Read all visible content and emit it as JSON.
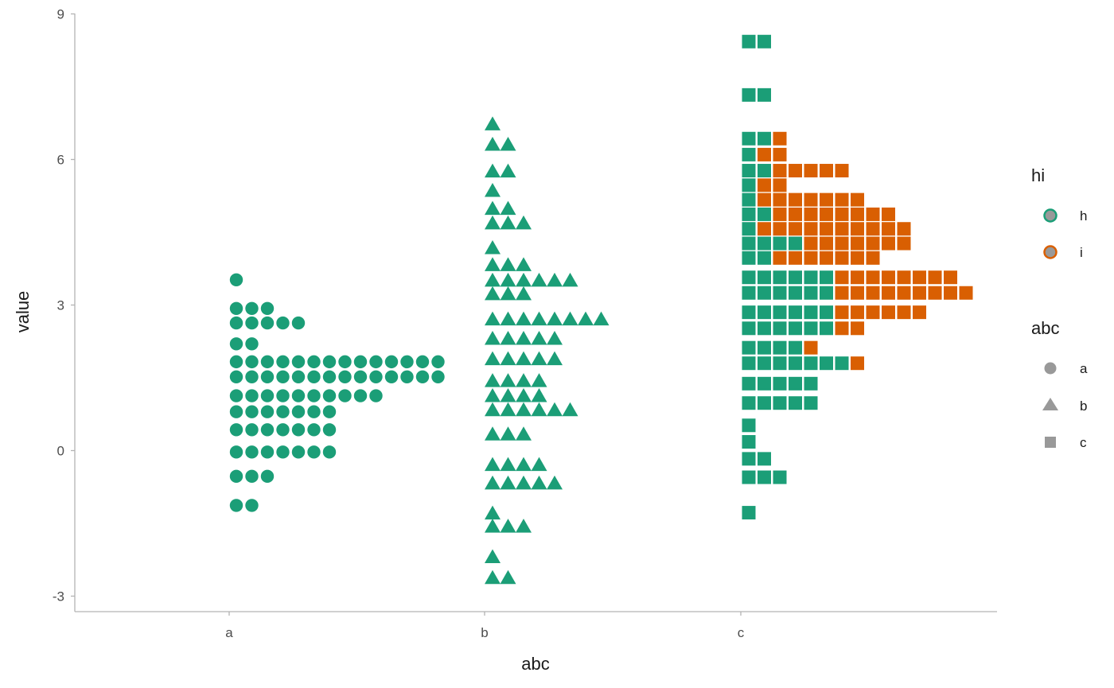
{
  "chart_data": {
    "type": "dotplot",
    "xlabel": "abc",
    "ylabel": "value",
    "categories": [
      "a",
      "b",
      "c"
    ],
    "y_ticks": [
      "-3",
      "0",
      "3",
      "6",
      "9"
    ],
    "ylim": [
      -3.3,
      9.05
    ],
    "binwidth": 0.33,
    "grid": false,
    "legend_position": "right",
    "colors": {
      "h": "#1B9E77",
      "i": "#D95F02",
      "legend_fill": "#999999"
    },
    "shapes": {
      "a": "circle",
      "b": "triangle",
      "c": "square"
    },
    "stacks": {
      "a": [
        {
          "y": 3.52,
          "counts": {
            "h": 1
          }
        },
        {
          "y": 2.93,
          "counts": {
            "h": 3
          }
        },
        {
          "y": 2.63,
          "counts": {
            "h": 5
          }
        },
        {
          "y": 2.2,
          "counts": {
            "h": 2
          }
        },
        {
          "y": 1.83,
          "counts": {
            "h": 14
          }
        },
        {
          "y": 1.52,
          "counts": {
            "h": 14
          }
        },
        {
          "y": 1.13,
          "counts": {
            "h": 10
          }
        },
        {
          "y": 0.8,
          "counts": {
            "h": 7
          }
        },
        {
          "y": 0.43,
          "counts": {
            "h": 7
          }
        },
        {
          "y": -0.03,
          "counts": {
            "h": 7
          }
        },
        {
          "y": -0.53,
          "counts": {
            "h": 3
          }
        },
        {
          "y": -1.13,
          "counts": {
            "h": 2
          }
        }
      ],
      "b": [
        {
          "y": 6.72,
          "counts": {
            "h": 1
          }
        },
        {
          "y": 6.3,
          "counts": {
            "h": 2
          }
        },
        {
          "y": 5.75,
          "counts": {
            "h": 2
          }
        },
        {
          "y": 5.35,
          "counts": {
            "h": 1
          }
        },
        {
          "y": 4.98,
          "counts": {
            "h": 2
          }
        },
        {
          "y": 4.68,
          "counts": {
            "h": 3
          }
        },
        {
          "y": 4.17,
          "counts": {
            "h": 1
          }
        },
        {
          "y": 3.82,
          "counts": {
            "h": 3
          }
        },
        {
          "y": 3.5,
          "counts": {
            "h": 6
          }
        },
        {
          "y": 3.22,
          "counts": {
            "h": 3
          }
        },
        {
          "y": 2.7,
          "counts": {
            "h": 8
          }
        },
        {
          "y": 2.3,
          "counts": {
            "h": 5
          }
        },
        {
          "y": 1.88,
          "counts": {
            "h": 5
          }
        },
        {
          "y": 1.43,
          "counts": {
            "h": 4
          }
        },
        {
          "y": 1.12,
          "counts": {
            "h": 4
          }
        },
        {
          "y": 0.83,
          "counts": {
            "h": 6
          }
        },
        {
          "y": 0.33,
          "counts": {
            "h": 3
          }
        },
        {
          "y": -0.3,
          "counts": {
            "h": 4
          }
        },
        {
          "y": -0.68,
          "counts": {
            "h": 5
          }
        },
        {
          "y": -1.3,
          "counts": {
            "h": 1
          }
        },
        {
          "y": -1.57,
          "counts": {
            "h": 3
          }
        },
        {
          "y": -2.2,
          "counts": {
            "h": 1
          }
        },
        {
          "y": -2.63,
          "counts": {
            "h": 2
          }
        }
      ],
      "c": [
        {
          "y": 8.43,
          "counts": {
            "h": 2,
            "i": 0
          }
        },
        {
          "y": 7.33,
          "counts": {
            "h": 2,
            "i": 0
          }
        },
        {
          "y": 6.43,
          "counts": {
            "h": 2,
            "i": 1
          }
        },
        {
          "y": 6.1,
          "counts": {
            "h": 1,
            "i": 2
          }
        },
        {
          "y": 5.77,
          "counts": {
            "h": 2,
            "i": 5
          }
        },
        {
          "y": 5.47,
          "counts": {
            "h": 1,
            "i": 2
          }
        },
        {
          "y": 5.17,
          "counts": {
            "h": 1,
            "i": 7
          }
        },
        {
          "y": 4.87,
          "counts": {
            "h": 2,
            "i": 8
          }
        },
        {
          "y": 4.57,
          "counts": {
            "h": 1,
            "i": 10
          }
        },
        {
          "y": 4.27,
          "counts": {
            "h": 4,
            "i": 7
          }
        },
        {
          "y": 3.97,
          "counts": {
            "h": 2,
            "i": 7
          }
        },
        {
          "y": 3.57,
          "counts": {
            "h": 6,
            "i": 8
          }
        },
        {
          "y": 3.25,
          "counts": {
            "h": 6,
            "i": 9
          }
        },
        {
          "y": 2.85,
          "counts": {
            "h": 6,
            "i": 6
          }
        },
        {
          "y": 2.52,
          "counts": {
            "h": 6,
            "i": 2
          }
        },
        {
          "y": 2.12,
          "counts": {
            "h": 4,
            "i": 1
          }
        },
        {
          "y": 1.8,
          "counts": {
            "h": 7,
            "i": 1
          }
        },
        {
          "y": 1.38,
          "counts": {
            "h": 5,
            "i": 0
          }
        },
        {
          "y": 0.98,
          "counts": {
            "h": 5,
            "i": 0
          }
        },
        {
          "y": 0.52,
          "counts": {
            "h": 1,
            "i": 0
          }
        },
        {
          "y": 0.18,
          "counts": {
            "h": 1,
            "i": 0
          }
        },
        {
          "y": -0.17,
          "counts": {
            "h": 2,
            "i": 0
          }
        },
        {
          "y": -0.55,
          "counts": {
            "h": 3,
            "i": 0
          }
        },
        {
          "y": -1.28,
          "counts": {
            "h": 1,
            "i": 0
          }
        }
      ]
    }
  },
  "legend": {
    "hi": {
      "title": "hi",
      "items": [
        {
          "label": "h",
          "color": "#1B9E77"
        },
        {
          "label": "i",
          "color": "#D95F02"
        }
      ]
    },
    "abc": {
      "title": "abc",
      "items": [
        {
          "label": "a",
          "shape": "circle"
        },
        {
          "label": "b",
          "shape": "triangle"
        },
        {
          "label": "c",
          "shape": "square"
        }
      ]
    }
  }
}
